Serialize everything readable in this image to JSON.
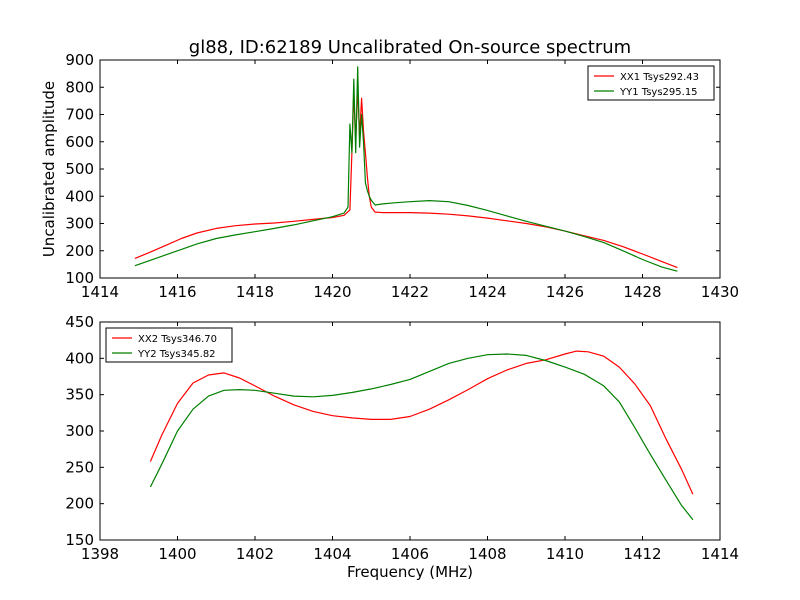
{
  "title": "gl88, ID:62189 Uncalibrated On-source spectrum",
  "chart_data": [
    {
      "type": "line",
      "title": "gl88, ID:62189 Uncalibrated On-source spectrum",
      "xlabel": "",
      "ylabel": "Uncalibrated amplitude",
      "xlim": [
        1414,
        1430
      ],
      "ylim": [
        100,
        900
      ],
      "xticks": [
        1414,
        1416,
        1418,
        1420,
        1422,
        1424,
        1426,
        1428,
        1430
      ],
      "yticks": [
        100,
        200,
        300,
        400,
        500,
        600,
        700,
        800,
        900
      ],
      "legend_position": "top-right",
      "series": [
        {
          "name": "XX1 Tsys292.43",
          "color": "#ff0000",
          "x": [
            1414.9,
            1415.3,
            1415.7,
            1416.1,
            1416.5,
            1417.0,
            1417.5,
            1418.0,
            1418.5,
            1419.0,
            1419.5,
            1420.0,
            1420.3,
            1420.45,
            1420.5,
            1420.55,
            1420.6,
            1420.65,
            1420.7,
            1420.75,
            1420.8,
            1420.85,
            1420.9,
            1420.95,
            1421.0,
            1421.1,
            1421.3,
            1421.6,
            1422.0,
            1422.5,
            1423.0,
            1423.5,
            1424.0,
            1424.5,
            1425.0,
            1425.5,
            1426.0,
            1426.5,
            1427.0,
            1427.5,
            1428.0,
            1428.5,
            1428.9
          ],
          "y": [
            172,
            195,
            220,
            245,
            265,
            282,
            292,
            298,
            302,
            308,
            315,
            322,
            330,
            350,
            560,
            780,
            600,
            800,
            620,
            760,
            640,
            560,
            470,
            400,
            360,
            342,
            340,
            340,
            340,
            338,
            334,
            328,
            320,
            310,
            300,
            288,
            272,
            255,
            238,
            215,
            188,
            160,
            138
          ]
        },
        {
          "name": "YY1 Tsys295.15",
          "color": "#008000",
          "x": [
            1414.9,
            1415.3,
            1415.7,
            1416.1,
            1416.5,
            1417.0,
            1417.5,
            1418.0,
            1418.5,
            1419.0,
            1419.5,
            1420.0,
            1420.3,
            1420.4,
            1420.45,
            1420.5,
            1420.55,
            1420.6,
            1420.65,
            1420.7,
            1420.75,
            1420.8,
            1420.85,
            1420.9,
            1420.95,
            1421.0,
            1421.1,
            1421.3,
            1421.6,
            1422.0,
            1422.5,
            1423.0,
            1423.5,
            1424.0,
            1424.5,
            1425.0,
            1425.5,
            1426.0,
            1426.5,
            1427.0,
            1427.5,
            1428.0,
            1428.5,
            1428.9
          ],
          "y": [
            145,
            165,
            185,
            205,
            225,
            245,
            258,
            270,
            282,
            295,
            310,
            325,
            338,
            360,
            665,
            560,
            830,
            560,
            875,
            580,
            700,
            600,
            450,
            420,
            400,
            385,
            368,
            372,
            376,
            380,
            384,
            380,
            366,
            348,
            328,
            308,
            290,
            272,
            252,
            230,
            200,
            168,
            140,
            125
          ]
        }
      ]
    },
    {
      "type": "line",
      "title": "",
      "xlabel": "Frequency (MHz)",
      "ylabel": "",
      "xlim": [
        1398,
        1414
      ],
      "ylim": [
        150,
        450
      ],
      "xticks": [
        1398,
        1400,
        1402,
        1404,
        1406,
        1408,
        1410,
        1412,
        1414
      ],
      "yticks": [
        150,
        200,
        250,
        300,
        350,
        400,
        450
      ],
      "legend_position": "top-left",
      "series": [
        {
          "name": "XX2 Tsys346.70",
          "color": "#ff0000",
          "x": [
            1399.3,
            1399.6,
            1400.0,
            1400.4,
            1400.8,
            1401.2,
            1401.6,
            1402.0,
            1402.5,
            1403.0,
            1403.5,
            1404.0,
            1404.5,
            1405.0,
            1405.5,
            1406.0,
            1406.5,
            1407.0,
            1407.5,
            1408.0,
            1408.5,
            1409.0,
            1409.5,
            1410.0,
            1410.3,
            1410.6,
            1411.0,
            1411.4,
            1411.8,
            1412.2,
            1412.6,
            1413.0,
            1413.3
          ],
          "y": [
            258,
            295,
            338,
            366,
            377,
            380,
            373,
            362,
            348,
            336,
            327,
            321,
            318,
            316,
            316,
            320,
            330,
            343,
            357,
            372,
            384,
            393,
            398,
            406,
            410,
            409,
            403,
            388,
            365,
            335,
            290,
            248,
            213
          ]
        },
        {
          "name": "YY2 Tsys345.82",
          "color": "#008000",
          "x": [
            1399.3,
            1399.6,
            1400.0,
            1400.4,
            1400.8,
            1401.2,
            1401.6,
            1402.0,
            1402.5,
            1403.0,
            1403.5,
            1404.0,
            1404.5,
            1405.0,
            1405.5,
            1406.0,
            1406.5,
            1407.0,
            1407.5,
            1408.0,
            1408.5,
            1409.0,
            1409.5,
            1410.0,
            1410.5,
            1411.0,
            1411.4,
            1411.8,
            1412.2,
            1412.6,
            1413.0,
            1413.3
          ],
          "y": [
            223,
            255,
            300,
            330,
            348,
            356,
            357,
            356,
            352,
            348,
            347,
            349,
            353,
            358,
            364,
            371,
            382,
            393,
            400,
            405,
            406,
            404,
            397,
            388,
            378,
            362,
            340,
            305,
            268,
            233,
            198,
            178
          ]
        }
      ]
    }
  ]
}
